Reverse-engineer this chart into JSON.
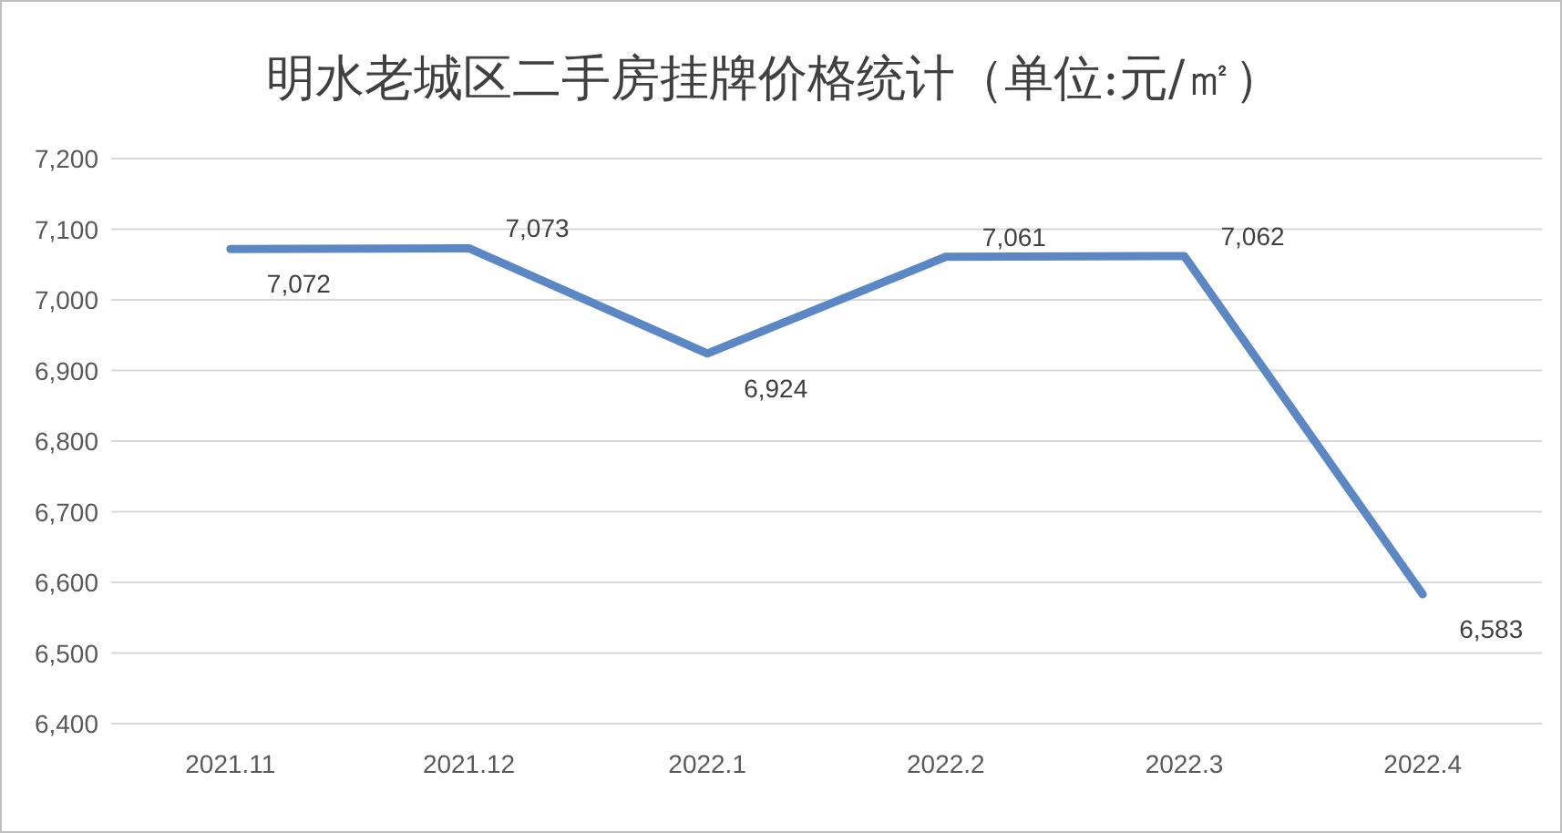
{
  "chart_data": {
    "type": "line",
    "title": "明水老城区二手房挂牌价格统计（单位:元/㎡）",
    "categories": [
      "2021.11",
      "2021.12",
      "2022.1",
      "2022.2",
      "2022.3",
      "2022.4"
    ],
    "values": [
      7072,
      7073,
      6924,
      7061,
      7062,
      6583
    ],
    "color": "#5b87c5",
    "ylim": [
      6400,
      7200
    ],
    "yticks": [
      {
        "value": 6400,
        "label": "6,400"
      },
      {
        "value": 6500,
        "label": "6,500"
      },
      {
        "value": 6600,
        "label": "6,600"
      },
      {
        "value": 6700,
        "label": "6,700"
      },
      {
        "value": 6800,
        "label": "6,800"
      },
      {
        "value": 6900,
        "label": "6,900"
      },
      {
        "value": 7000,
        "label": "7,000"
      },
      {
        "value": 7100,
        "label": "7,100"
      },
      {
        "value": 7200,
        "label": "7,200"
      }
    ],
    "grid": "y",
    "value_labels": [
      "7,072",
      "7,073",
      "6,924",
      "7,061",
      "7,062",
      "6,583"
    ]
  }
}
